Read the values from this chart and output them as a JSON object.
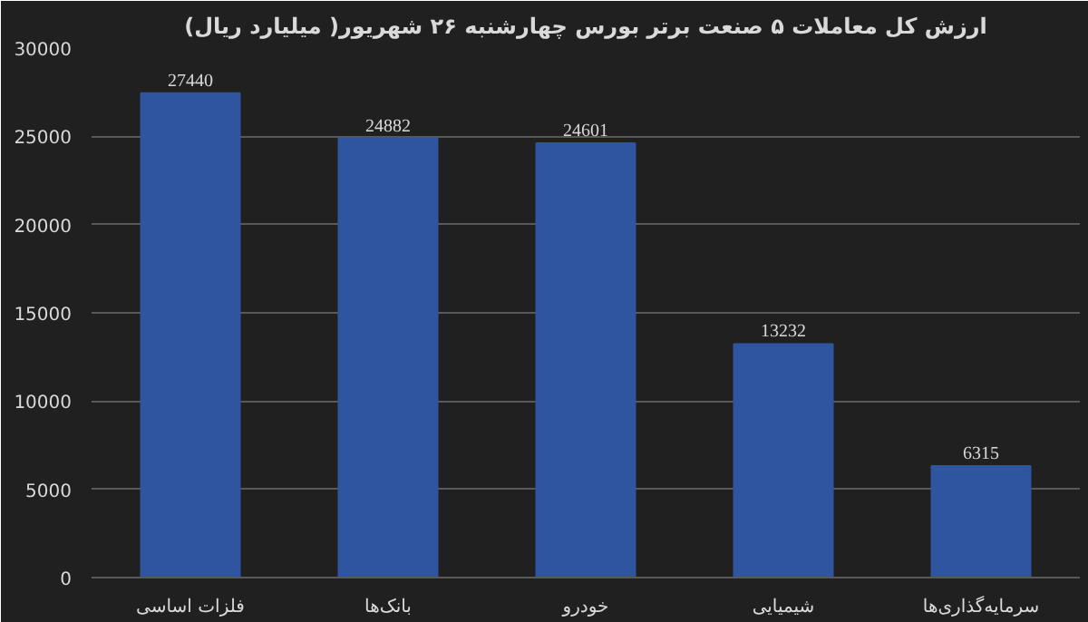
{
  "chart_data": {
    "type": "bar",
    "title": "ارزش کل معاملات ۵ صنعت برتر بورس چهارشنبه ۲۶ شهریور( میلیارد ریال)",
    "categories": [
      "فلزات اساسی",
      "بانک‌ها",
      "خودرو",
      "شیمیایی",
      "سرمایه‌گذاری‌ها"
    ],
    "values": [
      27440,
      24882,
      24601,
      13232,
      6315
    ],
    "color": "#2f55a0",
    "ylim": [
      0,
      30000
    ],
    "yticks": [
      0,
      5000,
      10000,
      15000,
      20000,
      25000,
      30000
    ],
    "grid": "y",
    "data_labels": true
  }
}
